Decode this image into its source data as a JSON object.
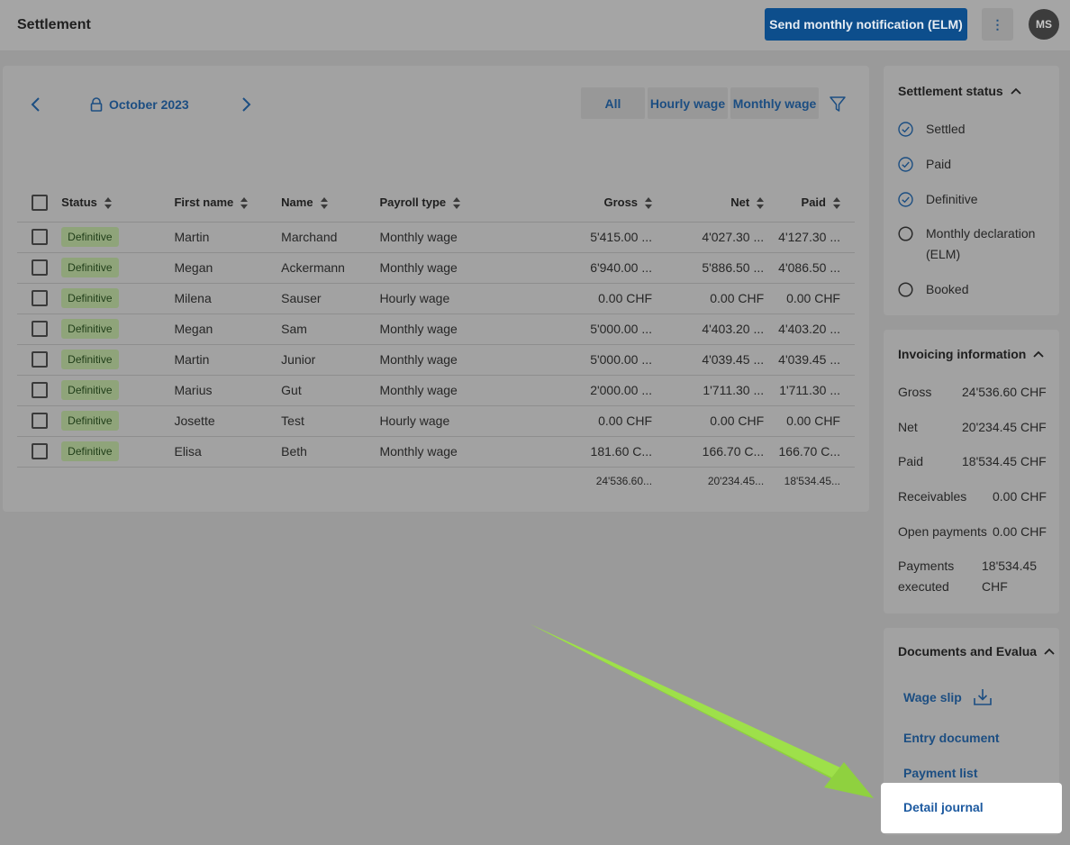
{
  "header": {
    "title": "Settlement",
    "elm_button": "Send monthly notification (ELM)",
    "more_icon": "vertical-dots-icon",
    "more_glyph": "⋮",
    "avatar_initials": "MS"
  },
  "toolbar": {
    "period": "October 2023",
    "lock_icon": "lock-icon",
    "filters": [
      "All",
      "Hourly wage",
      "Monthly wage"
    ],
    "filter_icon": "funnel-icon"
  },
  "table": {
    "columns": [
      "Status",
      "First name",
      "Name",
      "Payroll type",
      "Gross",
      "Net",
      "Paid"
    ],
    "rows": [
      {
        "status": "Definitive",
        "first_name": "Martin",
        "name": "Marchand",
        "payroll_type": "Monthly wage",
        "gross": "5'415.00 ...",
        "net": "4'027.30 ...",
        "paid": "4'127.30 ..."
      },
      {
        "status": "Definitive",
        "first_name": "Megan",
        "name": "Ackermann",
        "payroll_type": "Monthly wage",
        "gross": "6'940.00 ...",
        "net": "5'886.50 ...",
        "paid": "4'086.50 ..."
      },
      {
        "status": "Definitive",
        "first_name": "Milena",
        "name": "Sauser",
        "payroll_type": "Hourly wage",
        "gross": "0.00 CHF",
        "net": "0.00 CHF",
        "paid": "0.00 CHF"
      },
      {
        "status": "Definitive",
        "first_name": "Megan",
        "name": "Sam",
        "payroll_type": "Monthly wage",
        "gross": "5'000.00 ...",
        "net": "4'403.20 ...",
        "paid": "4'403.20 ..."
      },
      {
        "status": "Definitive",
        "first_name": "Martin",
        "name": "Junior",
        "payroll_type": "Monthly wage",
        "gross": "5'000.00 ...",
        "net": "4'039.45 ...",
        "paid": "4'039.45 ..."
      },
      {
        "status": "Definitive",
        "first_name": "Marius",
        "name": "Gut",
        "payroll_type": "Monthly wage",
        "gross": "2'000.00 ...",
        "net": "1'711.30 ...",
        "paid": "1'711.30 ..."
      },
      {
        "status": "Definitive",
        "first_name": "Josette",
        "name": "Test",
        "payroll_type": "Hourly wage",
        "gross": "0.00 CHF",
        "net": "0.00 CHF",
        "paid": "0.00 CHF"
      },
      {
        "status": "Definitive",
        "first_name": "Elisa",
        "name": "Beth",
        "payroll_type": "Monthly wage",
        "gross": "181.60 C...",
        "net": "166.70 C...",
        "paid": "166.70 C..."
      }
    ],
    "totals": {
      "gross": "24'536.60...",
      "net": "20'234.45...",
      "paid": "18'534.45..."
    }
  },
  "settlement_status": {
    "title": "Settlement status",
    "items": [
      {
        "label": "Settled",
        "checked": true
      },
      {
        "label": "Paid",
        "checked": true
      },
      {
        "label": "Definitive",
        "checked": true
      },
      {
        "label": "Monthly declaration (ELM)",
        "checked": false
      },
      {
        "label": "Booked",
        "checked": false
      }
    ]
  },
  "invoicing": {
    "title": "Invoicing information",
    "items": [
      {
        "label": "Gross",
        "value": "24'536.60 CHF"
      },
      {
        "label": "Net",
        "value": "20'234.45 CHF"
      },
      {
        "label": "Paid",
        "value": "18'534.45 CHF"
      },
      {
        "label": "Receivables",
        "value": "0.00 CHF"
      },
      {
        "label": "Open payments",
        "value": "0.00 CHF"
      },
      {
        "label": "Payments executed",
        "value": "18'534.45 CHF"
      }
    ]
  },
  "documents": {
    "title": "Documents and Evalua",
    "links": [
      "Wage slip",
      "Entry document",
      "Payment list",
      "Detail journal"
    ],
    "download_icon": "download-icon"
  },
  "colors": {
    "accent": "#0d4e8c",
    "arrow": "#8fd13f",
    "badge": "#8fa47a"
  }
}
